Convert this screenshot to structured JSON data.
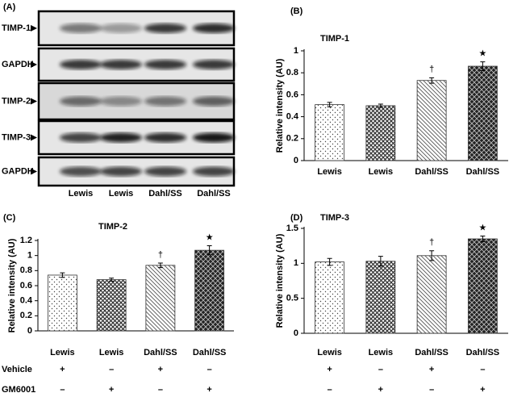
{
  "blot": {
    "panel": "(A)",
    "rows": [
      "TIMP-1",
      "GAPDH",
      "TIMP-2",
      "TIMP-3",
      "GAPDH"
    ],
    "lanes": [
      "Lewis",
      "Lewis",
      "Dahl/SS",
      "Dahl/SS"
    ]
  },
  "conditions": {
    "names": [
      "Vehicle",
      "GM6001"
    ],
    "rows": [
      [
        "+",
        "–",
        "+",
        "–"
      ],
      [
        "–",
        "+",
        "–",
        "+"
      ]
    ]
  },
  "chart_data": [
    {
      "type": "bar",
      "panel": "(B)",
      "title": "TIMP-1",
      "y_label": "Relative intensity (AU)",
      "categories": [
        "Lewis",
        "Lewis",
        "Dahl/SS",
        "Dahl/SS"
      ],
      "values": [
        0.51,
        0.5,
        0.73,
        0.86
      ],
      "errors": [
        0.02,
        0.015,
        0.025,
        0.04
      ],
      "markers": [
        null,
        null,
        "†",
        "★"
      ],
      "ylim": [
        0,
        1
      ],
      "yticks": [
        0,
        0.2,
        0.4,
        0.6,
        0.8,
        1
      ]
    },
    {
      "type": "bar",
      "panel": "(C)",
      "title": "TIMP-2",
      "y_label": "Relative intensity (AU)",
      "categories": [
        "Lewis",
        "Lewis",
        "Dahl/SS",
        "Dahl/SS"
      ],
      "values": [
        0.74,
        0.68,
        0.87,
        1.07
      ],
      "errors": [
        0.03,
        0.02,
        0.03,
        0.06
      ],
      "markers": [
        null,
        null,
        "†",
        "★"
      ],
      "ylim": [
        0,
        1.2
      ],
      "yticks": [
        0,
        0.2,
        0.4,
        0.6,
        0.8,
        1,
        1.2
      ]
    },
    {
      "type": "bar",
      "panel": "(D)",
      "title": "TIMP-3",
      "y_label": "Relative intensity (AU)",
      "categories": [
        "Lewis",
        "Lewis",
        "Dahl/SS",
        "Dahl/SS"
      ],
      "values": [
        1.02,
        1.03,
        1.11,
        1.35
      ],
      "errors": [
        0.05,
        0.07,
        0.07,
        0.04
      ],
      "markers": [
        null,
        null,
        "†",
        "★"
      ],
      "ylim": [
        0,
        1.5
      ],
      "yticks": [
        0,
        0.5,
        1,
        1.5
      ]
    }
  ]
}
